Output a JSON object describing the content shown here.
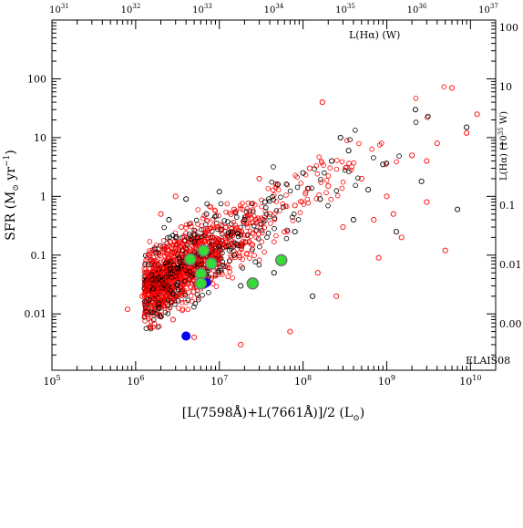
{
  "chart_data": {
    "type": "scatter",
    "field_label": "ELAIS08",
    "xlabel": "[L(7598Å)+L(7661Å)]/2 (L",
    "xlabel_sub": "⊙",
    "xlabel_close": ")",
    "ylabel": "SFR (M",
    "ylabel_sub": "⊙",
    "ylabel_rest": " yr",
    "ylabel_sup": "−1",
    "ylabel_close": ")",
    "top_axis_label": "L(Hα) (W)",
    "right_axis_label": "L(Hα) (10",
    "right_axis_label_sup": "35",
    "right_axis_label_rest": " W)",
    "x_scale": "log",
    "y_scale": "log",
    "xlim": [
      100000,
      20000000000
    ],
    "ylim": [
      0.0011,
      1000
    ],
    "x_ticks": [
      {
        "value": 100000,
        "label": "10",
        "sup": "5"
      },
      {
        "value": 1000000,
        "label": "10",
        "sup": "6"
      },
      {
        "value": 10000000,
        "label": "10",
        "sup": "7"
      },
      {
        "value": 100000000,
        "label": "10",
        "sup": "8"
      },
      {
        "value": 1000000000,
        "label": "10",
        "sup": "9"
      },
      {
        "value": 10000000000,
        "label": "10",
        "sup": "10"
      }
    ],
    "y_ticks": [
      {
        "value": 0.01,
        "label": "0.01"
      },
      {
        "value": 0.1,
        "label": "0.1"
      },
      {
        "value": 1,
        "label": "1"
      },
      {
        "value": 10,
        "label": "10"
      },
      {
        "value": 100,
        "label": "100"
      }
    ],
    "top_ticks": [
      {
        "label": "10",
        "sup": "31"
      },
      {
        "label": "10",
        "sup": "32"
      },
      {
        "label": "10",
        "sup": "33"
      },
      {
        "label": "10",
        "sup": "34"
      },
      {
        "label": "10",
        "sup": "35"
      },
      {
        "label": "10",
        "sup": "36"
      },
      {
        "label": "10",
        "sup": "37"
      }
    ],
    "right_ticks": [
      {
        "value": 1000,
        "label": "100"
      },
      {
        "value": 100,
        "label": "10"
      },
      {
        "value": 10,
        "label": "1"
      },
      {
        "value": 1,
        "label": "0.1"
      },
      {
        "value": 0.1,
        "label": "0.01"
      },
      {
        "value": 0.01,
        "label": "0.00"
      }
    ],
    "series": [
      {
        "color": "#ff0000",
        "marker": "open-circle",
        "points": [
          [
            2000000,
            0.5
          ],
          [
            3000000,
            1.0
          ],
          [
            1200000,
            0.02
          ],
          [
            800000,
            0.012
          ],
          [
            3500000,
            0.3
          ],
          [
            2800000,
            0.008
          ],
          [
            6000000,
            0.2
          ],
          [
            4500000,
            0.04
          ],
          [
            15000000,
            0.6
          ],
          [
            9000000,
            0.09
          ],
          [
            40000000,
            0.5
          ],
          [
            25000000,
            0.15
          ],
          [
            60000000,
            0.25
          ],
          [
            30000000,
            2.0
          ],
          [
            80000000,
            0.7
          ],
          [
            120000000,
            3.0
          ],
          [
            150000000,
            0.05
          ],
          [
            200000000,
            1.5
          ],
          [
            300000000,
            0.3
          ],
          [
            500000000,
            2.0
          ],
          [
            700000000,
            0.4
          ],
          [
            1000000000,
            1.0
          ],
          [
            1500000000,
            0.2
          ],
          [
            2000000000,
            5.0
          ],
          [
            3000000000,
            0.8
          ],
          [
            5000000000,
            0.12
          ],
          [
            6000000000,
            70
          ],
          [
            9000000000,
            12
          ],
          [
            12000000000,
            25
          ],
          [
            170000000,
            40
          ],
          [
            3000000000,
            4
          ],
          [
            4000000000,
            8
          ],
          [
            1200000000,
            0.5
          ],
          [
            800000000,
            0.09
          ],
          [
            18000000,
            0.003
          ],
          [
            70000000,
            0.005
          ],
          [
            250000000,
            0.02
          ],
          [
            5000000,
            0.004
          ],
          [
            1500000,
            0.006
          ],
          [
            12000000,
            0.3
          ]
        ]
      },
      {
        "color": "#000000",
        "marker": "open-circle",
        "points": [
          [
            2500000,
            0.4
          ],
          [
            4000000,
            0.9
          ],
          [
            5500000,
            0.2
          ],
          [
            7000000,
            0.5
          ],
          [
            10000000,
            1.2
          ],
          [
            15000000,
            0.1
          ],
          [
            20000000,
            0.4
          ],
          [
            35000000,
            0.8
          ],
          [
            50000000,
            1.6
          ],
          [
            80000000,
            0.25
          ],
          [
            100000000,
            2.5
          ],
          [
            160000000,
            0.9
          ],
          [
            220000000,
            4.0
          ],
          [
            350000000,
            6.0
          ],
          [
            400000000,
            0.4
          ],
          [
            600000000,
            1.3
          ],
          [
            900000000,
            3.5
          ],
          [
            1300000000,
            0.25
          ],
          [
            2200000000,
            30
          ],
          [
            7000000000,
            0.6
          ],
          [
            9000000000,
            15
          ],
          [
            2600000000,
            1.8
          ],
          [
            45000000,
            0.05
          ],
          [
            18000000,
            0.03
          ],
          [
            3200000,
            0.06
          ],
          [
            130000000,
            0.02
          ],
          [
            280000000,
            10
          ]
        ]
      },
      {
        "color": "#0000ff",
        "marker": "filled-circle",
        "points": [
          [
            4000000,
            0.0042
          ],
          [
            6500000,
            0.032
          ],
          [
            7000000,
            0.034
          ]
        ]
      },
      {
        "color": "#33dd33",
        "marker": "filled-circle-outlined",
        "points": [
          [
            4500000,
            0.085
          ],
          [
            6000000,
            0.048
          ],
          [
            6500000,
            0.12
          ],
          [
            8000000,
            0.072
          ],
          [
            6000000,
            0.033
          ],
          [
            25000000,
            0.033
          ],
          [
            55000000,
            0.082
          ]
        ]
      }
    ]
  }
}
